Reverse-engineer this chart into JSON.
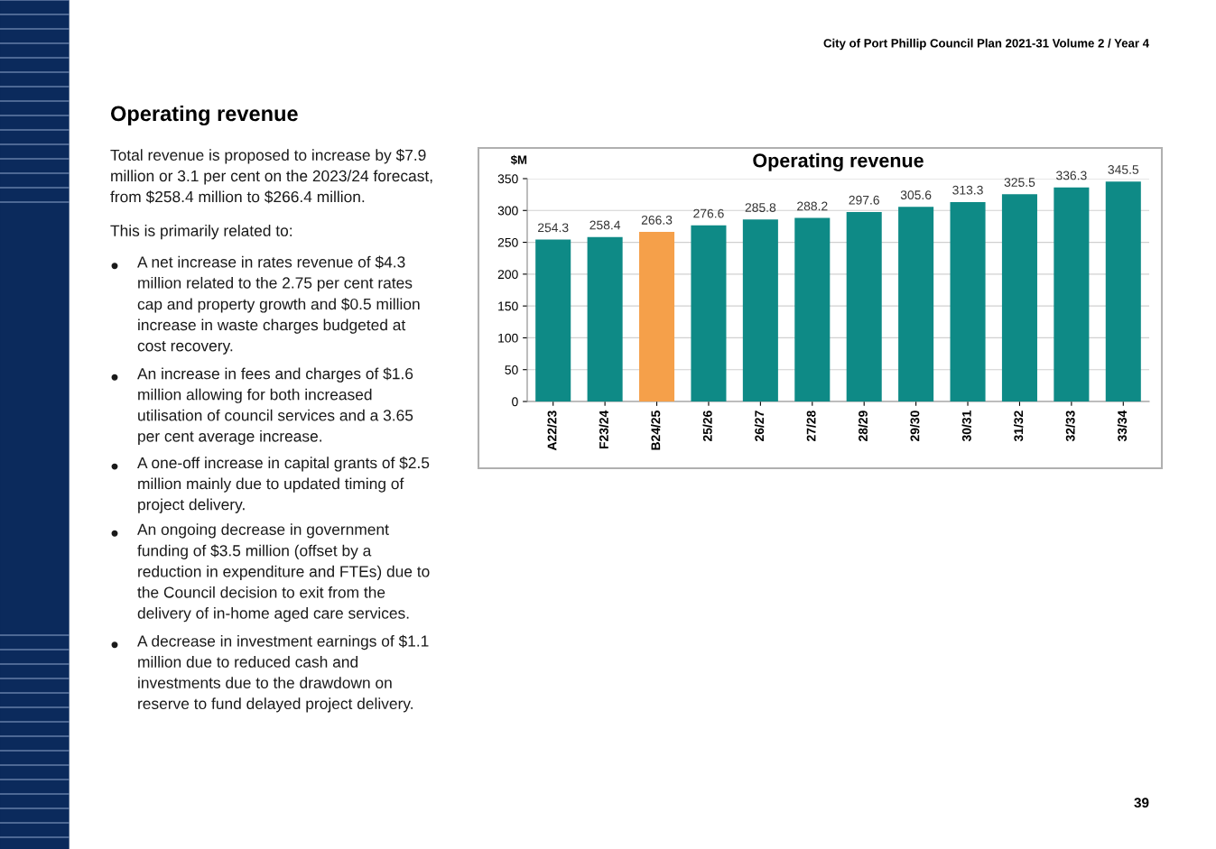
{
  "chart_data": {
    "type": "bar",
    "title": "Operating revenue",
    "ylabel": "$M",
    "categories": [
      "A22/23",
      "F23/24",
      "B24/25",
      "25/26",
      "26/27",
      "27/28",
      "28/29",
      "29/30",
      "30/31",
      "31/32",
      "32/33",
      "33/34"
    ],
    "values": [
      254.3,
      258.4,
      266.3,
      276.6,
      285.8,
      288.2,
      297.6,
      305.6,
      313.3,
      325.5,
      336.3,
      345.5
    ],
    "colors": [
      "#0e8a86",
      "#0e8a86",
      "#f5a04a",
      "#0e8a86",
      "#0e8a86",
      "#0e8a86",
      "#0e8a86",
      "#0e8a86",
      "#0e8a86",
      "#0e8a86",
      "#0e8a86",
      "#0e8a86"
    ],
    "ylim": [
      0,
      350
    ],
    "yticks": [
      0,
      50,
      100,
      150,
      200,
      250,
      300,
      350
    ],
    "grid": "y",
    "data_labels": true,
    "legend": false,
    "annotations": [
      "City of Port Phillip Council Plan 2021-31 Volume 2 / Year 4",
      "Operating revenue",
      "Total revenue is proposed to increase by $7.9\nmillion or 3.1 per cent on the 2023/24 forecast,\nfrom $258.4 million to $266.4 million.",
      "This is primarily related to:",
      "A net increase in rates revenue of $4.3\nmillion related to the 2.75 per cent rates\ncap and property growth and $0.5 million\nincrease in waste charges budgeted at\ncost recovery.",
      "An increase in fees and charges of $1.6\nmillion allowing for both increased\nutilisation of council services and a 3.65\nper cent average increase.",
      "A one-off increase in capital grants of $2.5\nmillion mainly due to updated timing of\nproject delivery.",
      "An ongoing decrease in government\nfunding of $3.5 million (offset by a\nreduction in expenditure and FTEs) due to\nthe Council decision to exit from the\ndelivery of in-home aged care services.",
      "A decrease in investment earnings of $1.1\nmillion due to reduced cash and\ninvestments due to the drawdown on\nreserve to fund delayed project delivery.",
      "39"
    ]
  }
}
